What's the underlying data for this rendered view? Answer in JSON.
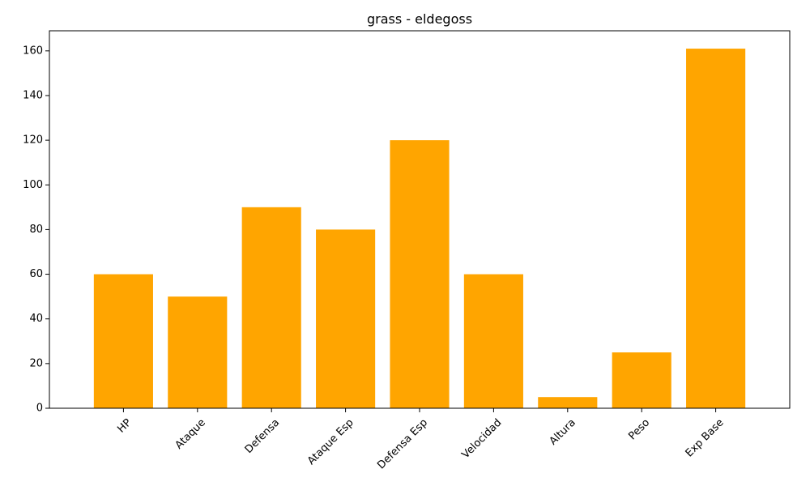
{
  "chart_data": {
    "type": "bar",
    "title": "grass - eldegoss",
    "xlabel": "",
    "ylabel": "",
    "categories": [
      "HP",
      "Ataque",
      "Defensa",
      "Ataque Esp",
      "Defensa Esp",
      "Velocidad",
      "Altura",
      "Peso",
      "Exp Base"
    ],
    "values": [
      60,
      50,
      90,
      80,
      120,
      60,
      5,
      25,
      161
    ],
    "ylim": [
      0,
      169
    ],
    "yticks": [
      0,
      20,
      40,
      60,
      80,
      100,
      120,
      140,
      160
    ],
    "bar_color": "#ffa500",
    "grid": false,
    "x_tick_rotation": 45
  }
}
